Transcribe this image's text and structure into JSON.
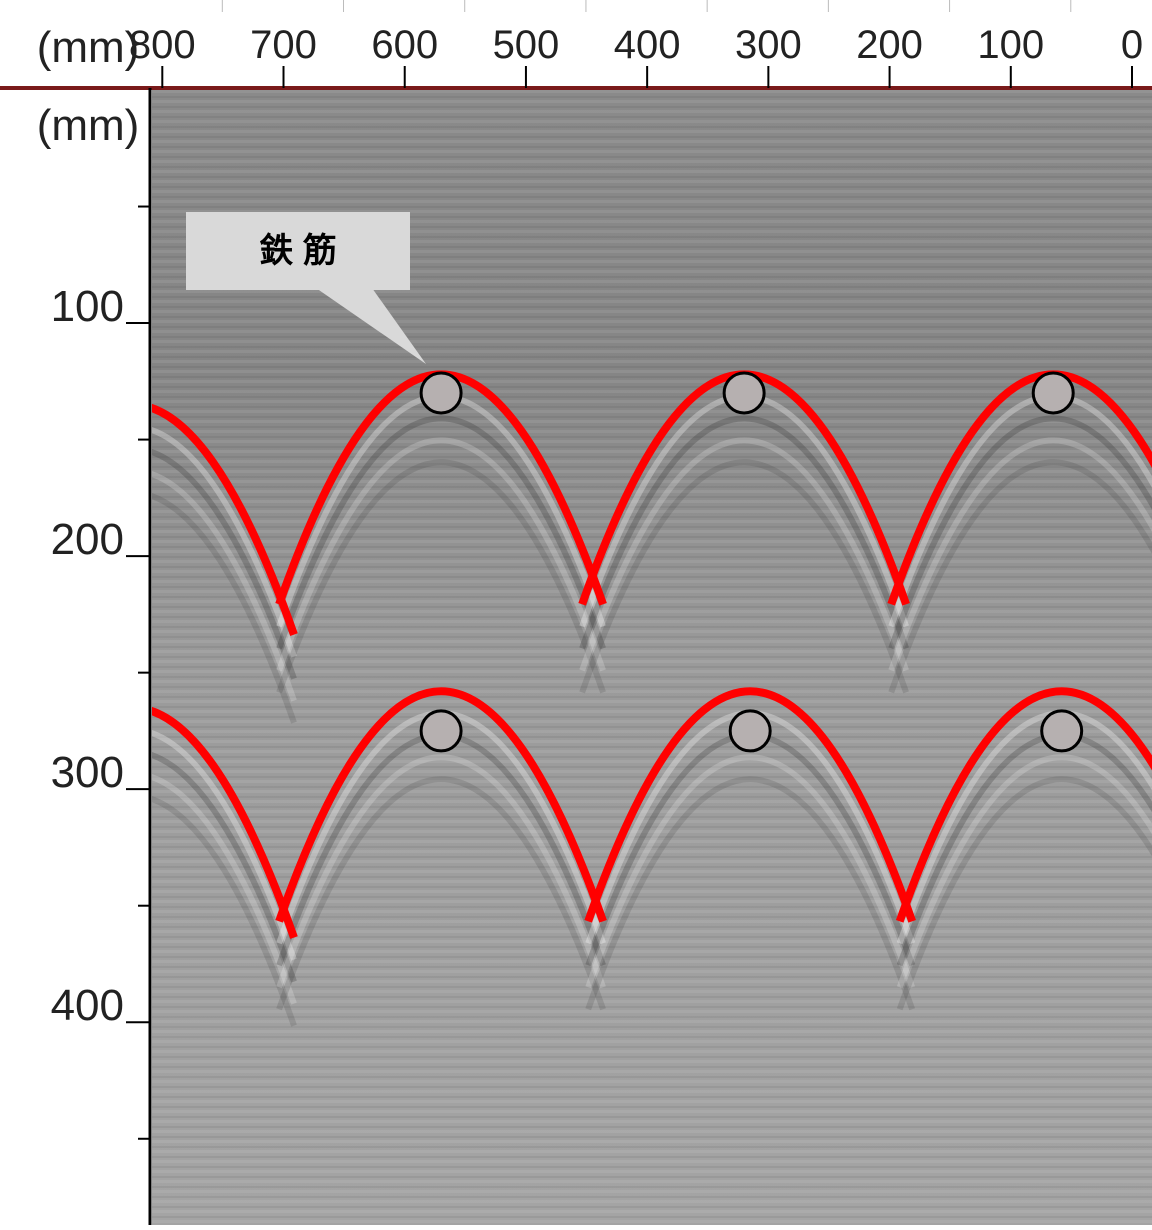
{
  "chart_data": {
    "type": "scatter",
    "title": "",
    "x_axis": {
      "label": "(mm)",
      "ticks": [
        800,
        700,
        600,
        500,
        400,
        300,
        200,
        100,
        0
      ],
      "reversed": true,
      "range": [
        0,
        825
      ]
    },
    "y_axis": {
      "label": "(mm)",
      "ticks": [
        100,
        200,
        300,
        400
      ],
      "reversed": true,
      "range": [
        0,
        487
      ]
    },
    "grid": false,
    "background": "radar B-scan grayscale image",
    "callout": {
      "text": "鉄 筋"
    },
    "series": [
      {
        "name": "鉄 筋",
        "rebar_points": [
          {
            "x": 570,
            "y": 130
          },
          {
            "x": 320,
            "y": 130
          },
          {
            "x": 65,
            "y": 130
          },
          {
            "x": 570,
            "y": 275
          },
          {
            "x": 315,
            "y": 275
          },
          {
            "x": 58,
            "y": 275
          }
        ]
      }
    ],
    "hyperbola_apexes": [
      {
        "x": 825,
        "y": 135
      },
      {
        "x": 570,
        "y": 122
      },
      {
        "x": 320,
        "y": 122
      },
      {
        "x": 65,
        "y": 122
      },
      {
        "x": 825,
        "y": 265
      },
      {
        "x": 570,
        "y": 258
      },
      {
        "x": 315,
        "y": 258
      },
      {
        "x": 58,
        "y": 258
      }
    ]
  },
  "colors": {
    "hyperbola": "#ff0000",
    "rebar_fill": "#b6b0b0",
    "callout_fill": "#d9d9d9",
    "axis": "#000000",
    "frame_top": "#7a1a1a"
  }
}
